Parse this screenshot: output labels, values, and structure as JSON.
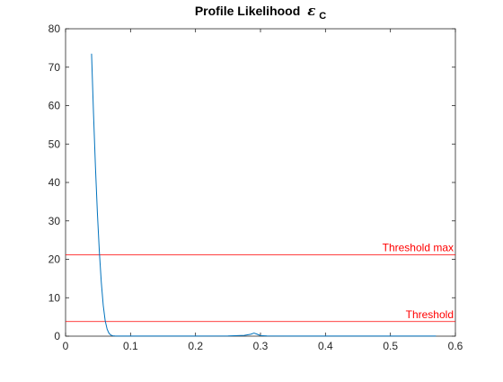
{
  "chart_data": {
    "type": "line",
    "title": {
      "text": "Profile Likelihood",
      "symbol": "ε",
      "subscript": "C"
    },
    "xlabel": "",
    "ylabel": "",
    "xlim": [
      0,
      0.6
    ],
    "ylim": [
      0,
      80
    ],
    "xticks": [
      0,
      0.1,
      0.2,
      0.3,
      0.4,
      0.5,
      0.6
    ],
    "xtick_labels": [
      "0",
      "0.1",
      "0.2",
      "0.3",
      "0.4",
      "0.5",
      "0.6"
    ],
    "yticks": [
      0,
      10,
      20,
      30,
      40,
      50,
      60,
      70,
      80
    ],
    "ytick_labels": [
      "0",
      "10",
      "20",
      "30",
      "40",
      "50",
      "60",
      "70",
      "80"
    ],
    "grid": false,
    "series": [
      {
        "color": "#0072bd",
        "x": [
          0.04,
          0.043,
          0.046,
          0.049,
          0.052,
          0.055,
          0.058,
          0.061,
          0.064,
          0.067,
          0.07,
          0.073,
          0.076,
          0.08,
          0.09,
          0.1,
          0.15,
          0.2,
          0.25,
          0.275,
          0.285,
          0.29,
          0.295,
          0.3,
          0.31,
          0.35,
          0.4,
          0.45,
          0.5,
          0.54,
          0.57
        ],
        "y": [
          73.5,
          58.0,
          44.0,
          32.0,
          22.0,
          14.0,
          8.0,
          4.0,
          1.8,
          0.7,
          0.25,
          0.1,
          0.05,
          0.03,
          0.02,
          0.02,
          0.02,
          0.02,
          0.05,
          0.2,
          0.5,
          0.8,
          0.5,
          0.15,
          0.05,
          0.02,
          0.02,
          0.02,
          0.02,
          0.02,
          0.02
        ]
      }
    ],
    "hlines": [
      {
        "label": "Threshold max",
        "y": 21.2,
        "color": "#ff0000"
      },
      {
        "label": "Threshold",
        "y": 3.8,
        "color": "#ff0000"
      }
    ]
  }
}
